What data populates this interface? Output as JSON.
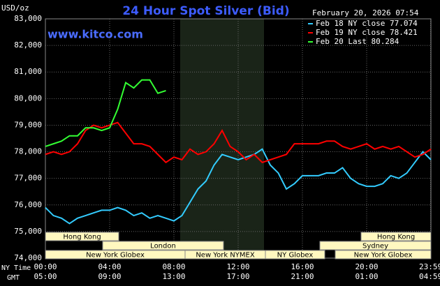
{
  "chart_data": {
    "type": "line",
    "title": "24 Hour Spot Silver (Bid)",
    "unit_label": "USD/oz",
    "site": "www.kitco.com",
    "timestamp": "February 20, 2026 07:54",
    "x_row_labels": [
      "NY Time",
      "GMT"
    ],
    "xlim": [
      0,
      24
    ],
    "xticks": [
      {
        "value": 0,
        "label": "00:00"
      },
      {
        "value": 4,
        "label": "04:00"
      },
      {
        "value": 8,
        "label": "08:00"
      },
      {
        "value": 12,
        "label": "12:00"
      },
      {
        "value": 16,
        "label": "16:00"
      },
      {
        "value": 20,
        "label": "20:00"
      },
      {
        "value": 23.98,
        "label": "23:59"
      }
    ],
    "gmt_labels": [
      "05:00",
      "09:00",
      "13:00",
      "17:00",
      "21:00",
      "01:00",
      "04:59"
    ],
    "ylim": [
      74,
      83
    ],
    "yticks": [
      {
        "value": 74,
        "label": "74,000"
      },
      {
        "value": 75,
        "label": "75,000"
      },
      {
        "value": 76,
        "label": "76,000"
      },
      {
        "value": 77,
        "label": "77,000"
      },
      {
        "value": 78,
        "label": "78,000"
      },
      {
        "value": 79,
        "label": "79,000"
      },
      {
        "value": 80,
        "label": "80,000"
      },
      {
        "value": 81,
        "label": "81,000"
      },
      {
        "value": 82,
        "label": "82,000"
      },
      {
        "value": 83,
        "label": "83,000"
      }
    ],
    "grid": true,
    "sessions": [
      "Hong Kong",
      "London",
      "New York Globex",
      "New York NYMEX",
      "NY Globex",
      "Hong Kong",
      "Sydney",
      "New York Globex"
    ],
    "x": [
      0,
      0.5,
      1,
      1.5,
      2,
      2.5,
      3,
      3.5,
      4,
      4.5,
      5,
      5.5,
      6,
      6.5,
      7,
      7.5,
      8,
      8.5,
      9,
      9.5,
      10,
      10.5,
      11,
      11.5,
      12,
      12.5,
      13,
      13.5,
      14,
      14.5,
      15,
      15.5,
      16,
      16.5,
      17,
      17.5,
      18,
      18.5,
      19,
      19.5,
      20,
      20.5,
      21,
      21.5,
      22,
      22.5,
      23,
      23.5,
      24
    ],
    "series": [
      {
        "name": "Feb 18 NY close 77.074",
        "color": "#33ccff",
        "values": [
          75.9,
          75.6,
          75.5,
          75.3,
          75.5,
          75.6,
          75.7,
          75.8,
          75.8,
          75.9,
          75.8,
          75.6,
          75.7,
          75.5,
          75.6,
          75.5,
          75.4,
          75.6,
          76.1,
          76.6,
          76.9,
          77.5,
          77.9,
          77.8,
          77.7,
          77.8,
          77.9,
          78.1,
          77.5,
          77.2,
          76.6,
          76.8,
          77.1,
          77.1,
          77.1,
          77.2,
          77.2,
          77.4,
          77.0,
          76.8,
          76.7,
          76.7,
          76.8,
          77.1,
          77.0,
          77.2,
          77.6,
          78.0,
          77.7
        ]
      },
      {
        "name": "Feb 19 NY close 78.421",
        "color": "#ff0000",
        "values": [
          77.9,
          78.0,
          77.9,
          78.0,
          78.3,
          78.8,
          79.0,
          78.9,
          79.0,
          79.1,
          78.7,
          78.3,
          78.3,
          78.2,
          77.9,
          77.6,
          77.8,
          77.7,
          78.1,
          77.9,
          78.0,
          78.3,
          78.8,
          78.2,
          78.0,
          77.7,
          77.9,
          77.6,
          77.7,
          77.8,
          77.9,
          78.3,
          78.3,
          78.3,
          78.3,
          78.4,
          78.4,
          78.2,
          78.1,
          78.2,
          78.3,
          78.1,
          78.2,
          78.1,
          78.2,
          78.0,
          77.8,
          77.9,
          78.1
        ]
      },
      {
        "name": "Feb 20 Last 80.284",
        "color": "#33ff33",
        "values": [
          78.2,
          78.3,
          78.4,
          78.6,
          78.6,
          78.9,
          78.9,
          78.8,
          78.9,
          79.6,
          80.6,
          80.4,
          80.7,
          80.7,
          80.2,
          80.3,
          null,
          null,
          null,
          null,
          null,
          null,
          null,
          null,
          null,
          null,
          null,
          null,
          null,
          null,
          null,
          null,
          null,
          null,
          null,
          null,
          null,
          null,
          null,
          null,
          null,
          null,
          null,
          null,
          null,
          null,
          null,
          null,
          null
        ]
      }
    ]
  }
}
